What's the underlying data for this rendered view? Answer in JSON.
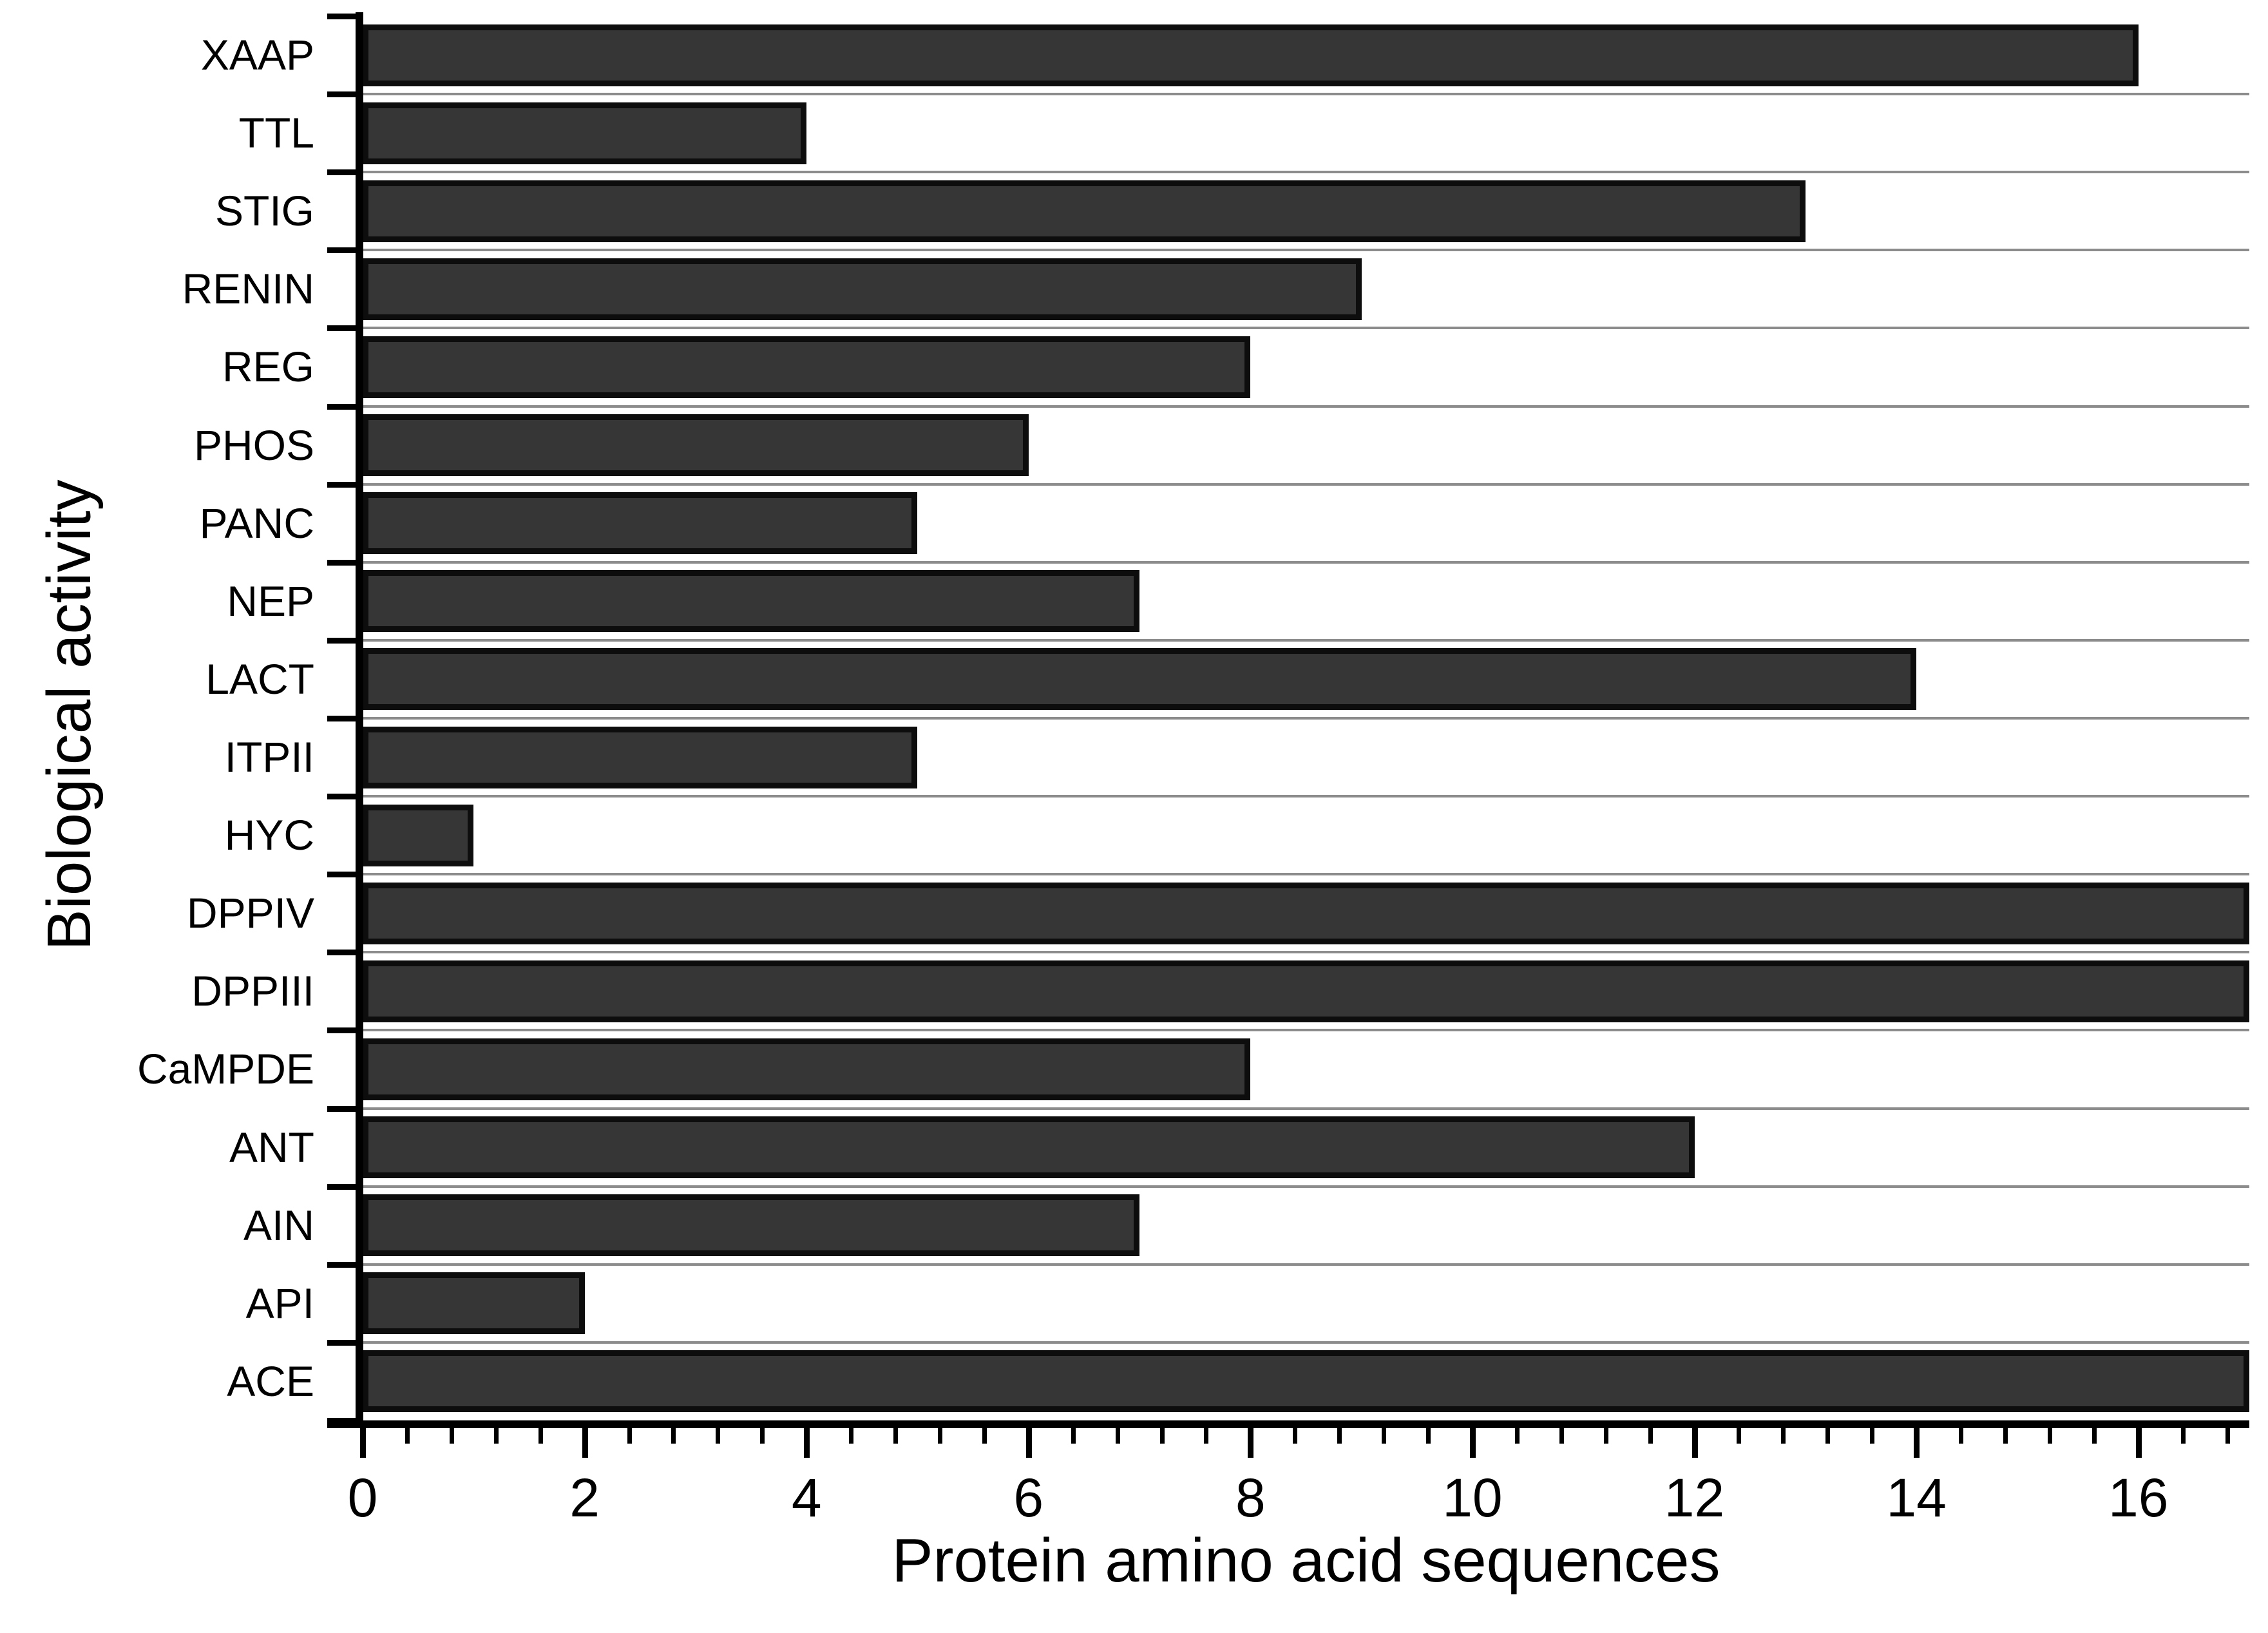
{
  "chart_data": {
    "type": "bar",
    "orientation": "horizontal",
    "title": "",
    "xlabel": "Protein amino acid sequences",
    "ylabel": "Biological activity",
    "categories_top_to_bottom": [
      "XAAP",
      "TTL",
      "STIG",
      "RENIN",
      "REG",
      "PHOS",
      "PANC",
      "NEP",
      "LACT",
      "ITPII",
      "HYC",
      "DPPIV",
      "DPPIII",
      "CaMPDE",
      "ANT",
      "AIN",
      "API",
      "ACE"
    ],
    "values": [
      16,
      4,
      13,
      9,
      8,
      6,
      5,
      7,
      14,
      5,
      1,
      17,
      17,
      8,
      12,
      7,
      2,
      17
    ],
    "xlim": [
      0,
      17
    ],
    "x_major_ticks": [
      0,
      2,
      4,
      6,
      8,
      10,
      12,
      14,
      16
    ],
    "x_major_tick_labels": [
      "0",
      "2",
      "4",
      "6",
      "8",
      "10",
      "12",
      "14",
      "16"
    ],
    "x_minor_tick_step": 0.4,
    "grid": "horizontal gray separator line at every category boundary",
    "legend_position": "none",
    "colors": {
      "bar_fill": "#363636",
      "bar_border": "#0d0d0d",
      "gridline": "#8c8c8c",
      "axis": "#000000",
      "text": "#000000",
      "background": "#ffffff"
    }
  }
}
